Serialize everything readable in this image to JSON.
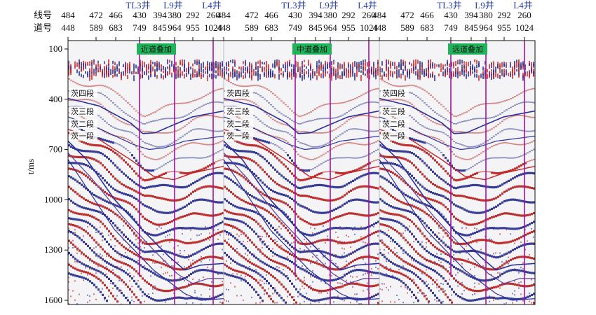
{
  "chart_data": {
    "type": "seismic-section",
    "ylabel": "t/ms",
    "ylim": [
      1600,
      100
    ],
    "yticks": [
      100,
      400,
      700,
      1000,
      1300,
      1600
    ],
    "header": {
      "line_label": "线号",
      "trace_label": "道号",
      "line_numbers": [
        "484",
        "472",
        "466",
        "430",
        "394",
        "380",
        "292",
        "260"
      ],
      "trace_numbers": [
        "448",
        "589",
        "683",
        "749",
        "845",
        "964",
        "955",
        "1024"
      ]
    },
    "wells": [
      {
        "name": "TL3井",
        "trace": 749
      },
      {
        "name": "L9井",
        "trace": 964
      },
      {
        "name": "L4井",
        "trace": 1024
      }
    ],
    "panels": [
      {
        "title": "近道叠加",
        "horizon_labels": [
          "茨四段",
          "茨三段",
          "茨二段",
          "茨一段"
        ]
      },
      {
        "title": "中道叠加",
        "horizon_labels": [
          "茨四段",
          "茨三段",
          "茨二段",
          "茨一段"
        ]
      },
      {
        "title": "远道叠加",
        "horizon_labels": [
          "茨四段"
        ]
      }
    ],
    "panel_tail_labels": [
      "茨三段",
      "茨二段",
      "茨一段"
    ],
    "title_color": "#1fb35a",
    "well_color": "#a0149a",
    "horizon_colors": {
      "blue": "#2b2f9e",
      "red": "#c81f1f"
    }
  }
}
